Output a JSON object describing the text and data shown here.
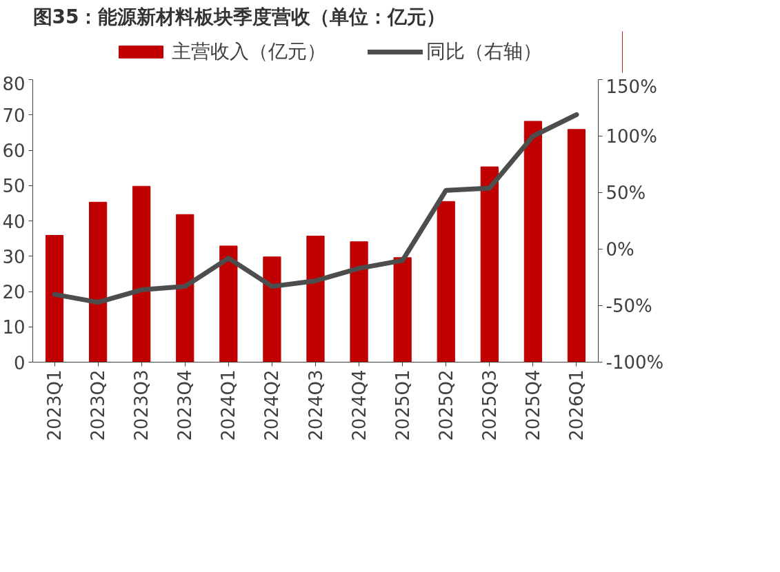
{
  "chart_data": {
    "type": "bar",
    "title": "图35：能源新材料板块季度营收（单位：亿元）",
    "categories": [
      "2023Q1",
      "2023Q2",
      "2023Q3",
      "2023Q4",
      "2024Q1",
      "2024Q2",
      "2024Q3",
      "2024Q4",
      "2025Q1",
      "2025Q2",
      "2025Q3",
      "2025Q4",
      "2026Q1"
    ],
    "series": [
      {
        "name": "主营收入（亿元）",
        "color": "#c00000",
        "values": [
          35.9,
          45.3,
          49.8,
          41.8,
          32.9,
          29.8,
          35.7,
          34.1,
          29.6,
          45.5,
          55.3,
          68.2,
          65.9
        ]
      },
      {
        "name": "同比（右轴）",
        "type": "line",
        "axis": "y2",
        "color": "#4d4d4d",
        "values": [
          -40,
          -47,
          -36,
          -33,
          -8,
          -33,
          -28,
          -17,
          -10,
          52,
          54,
          100,
          119
        ]
      }
    ],
    "ylim": [
      0,
      80
    ],
    "yticks": [
      0,
      10,
      20,
      30,
      40,
      50,
      60,
      70,
      80
    ],
    "y2lim": [
      -100,
      150
    ],
    "y2ticks": [
      {
        "value": -100,
        "label": "-100%"
      },
      {
        "value": -50,
        "label": "-50%"
      },
      {
        "value": 0,
        "label": "0%"
      },
      {
        "value": 50,
        "label": "50%"
      },
      {
        "value": 100,
        "label": "100%"
      },
      {
        "value": 150,
        "label": "150%"
      }
    ],
    "legend": "top",
    "grid": false,
    "line_style": "solid",
    "marker": "none"
  }
}
